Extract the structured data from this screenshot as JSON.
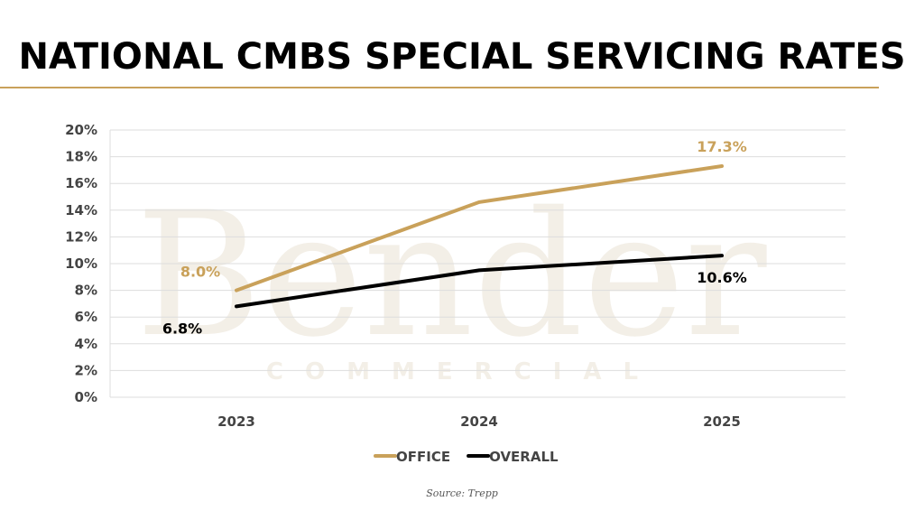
{
  "title": "NATIONAL CMBS SPECIAL SERVICING RATES",
  "source": "Source: Trepp",
  "watermark": {
    "line1": "Bender",
    "line2": "COMMERCIAL"
  },
  "colors": {
    "office": "#c9a15a",
    "overall": "#000000",
    "rule": "#c9a15a",
    "grid": "#dddddd"
  },
  "chart_data": {
    "type": "line",
    "title": "NATIONAL CMBS SPECIAL SERVICING RATES",
    "categories": [
      "2023",
      "2024",
      "2025"
    ],
    "series": [
      {
        "name": "OFFICE",
        "values": [
          8.0,
          14.6,
          17.3
        ],
        "labels": [
          "8.0%",
          "",
          "17.3%"
        ],
        "color": "#c9a15a"
      },
      {
        "name": "OVERALL",
        "values": [
          6.8,
          9.5,
          10.6
        ],
        "labels": [
          "6.8%",
          "",
          "10.6%"
        ],
        "color": "#000000"
      }
    ],
    "ylim": [
      0,
      20
    ],
    "yticks": [
      "0%",
      "2%",
      "4%",
      "6%",
      "8%",
      "10%",
      "12%",
      "14%",
      "16%",
      "18%",
      "20%"
    ],
    "grid": true,
    "legend": "bottom"
  }
}
